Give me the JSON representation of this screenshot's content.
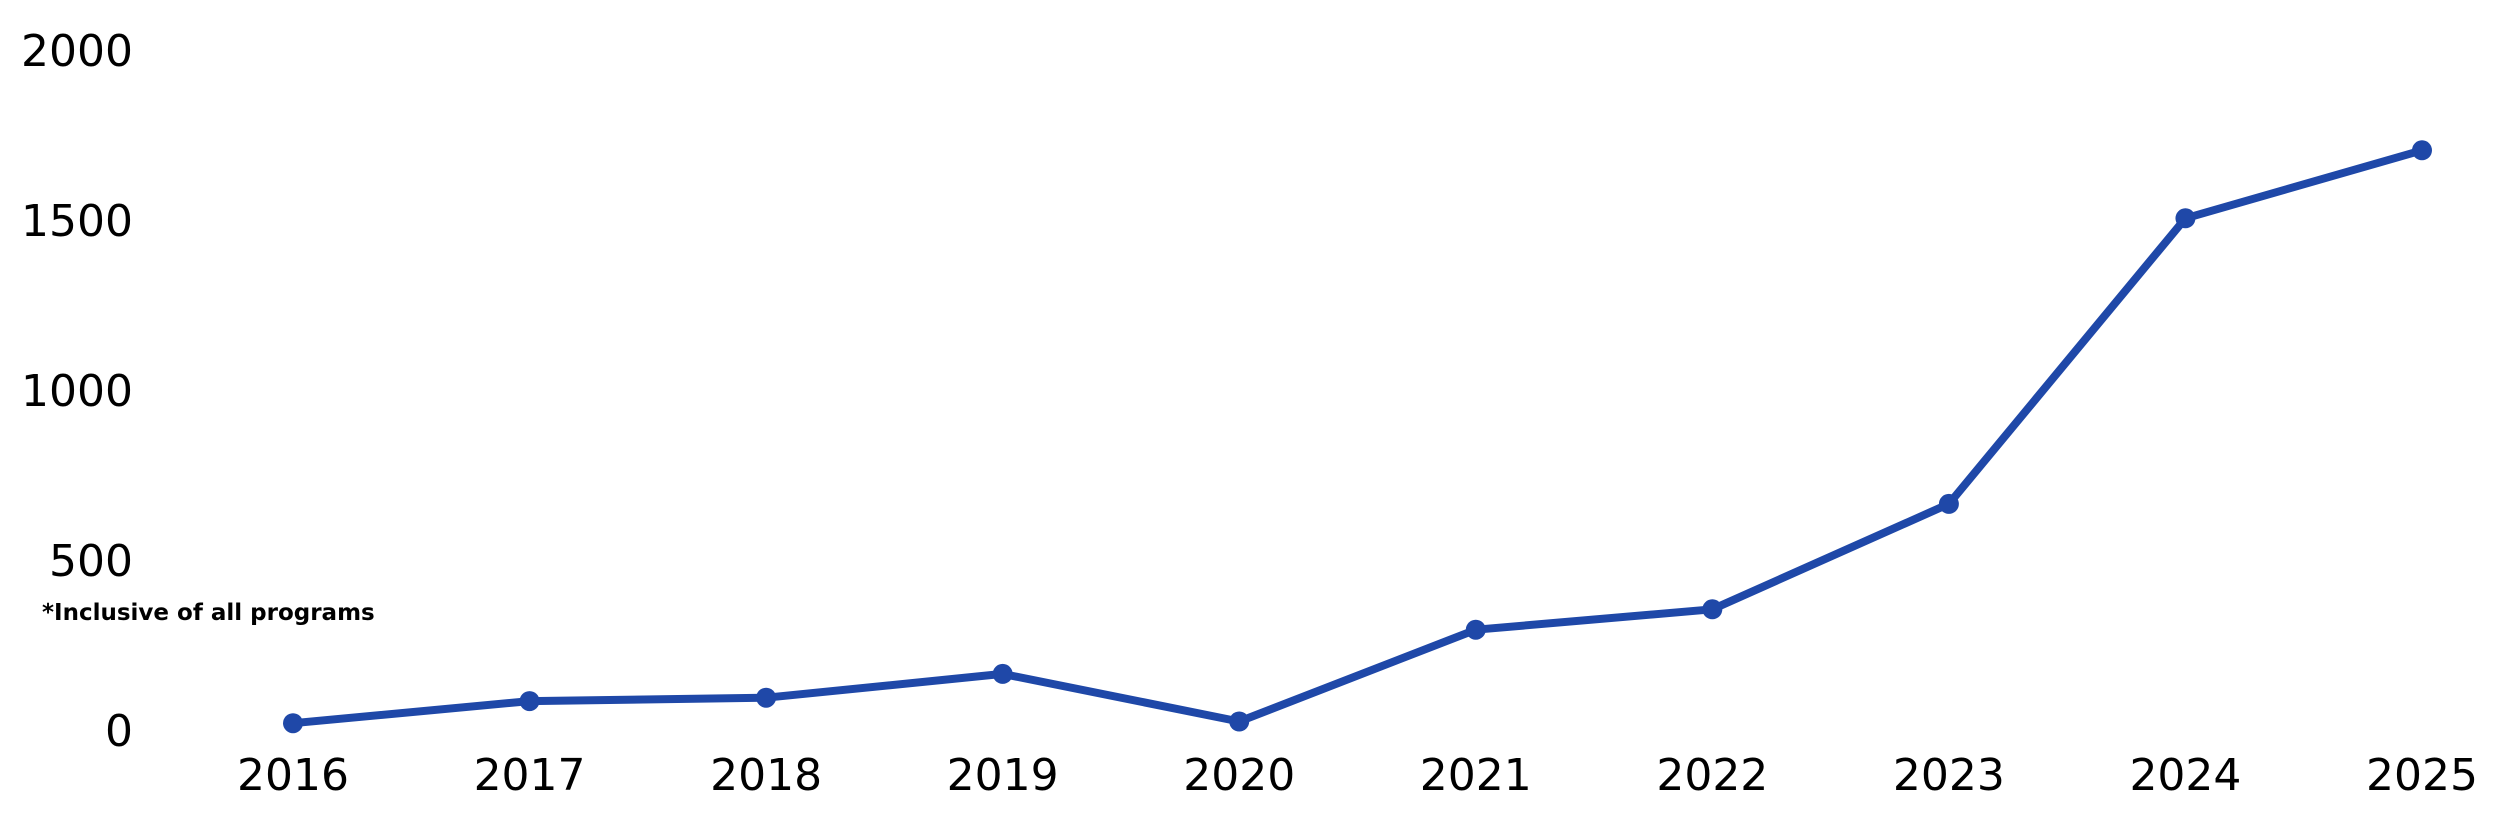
{
  "chart_data": {
    "type": "line",
    "title": "",
    "xlabel": "",
    "ylabel": "",
    "categories": [
      "2016",
      "2017",
      "2018",
      "2019",
      "2020",
      "2021",
      "2022",
      "2023",
      "2024",
      "2025"
    ],
    "series": [
      {
        "values": [
          20,
          85,
          95,
          165,
          25,
          295,
          355,
          665,
          1505,
          1705
        ]
      }
    ],
    "ylim": [
      0,
      2000
    ],
    "yticks": [
      "0",
      "500",
      "1000",
      "1500",
      "2000"
    ],
    "grid": false,
    "legend": "none",
    "annotation": "*Inclusive of all programs",
    "colors": {
      "line": "#1f48a8",
      "text": "#000000",
      "background": "#ffffff"
    }
  }
}
